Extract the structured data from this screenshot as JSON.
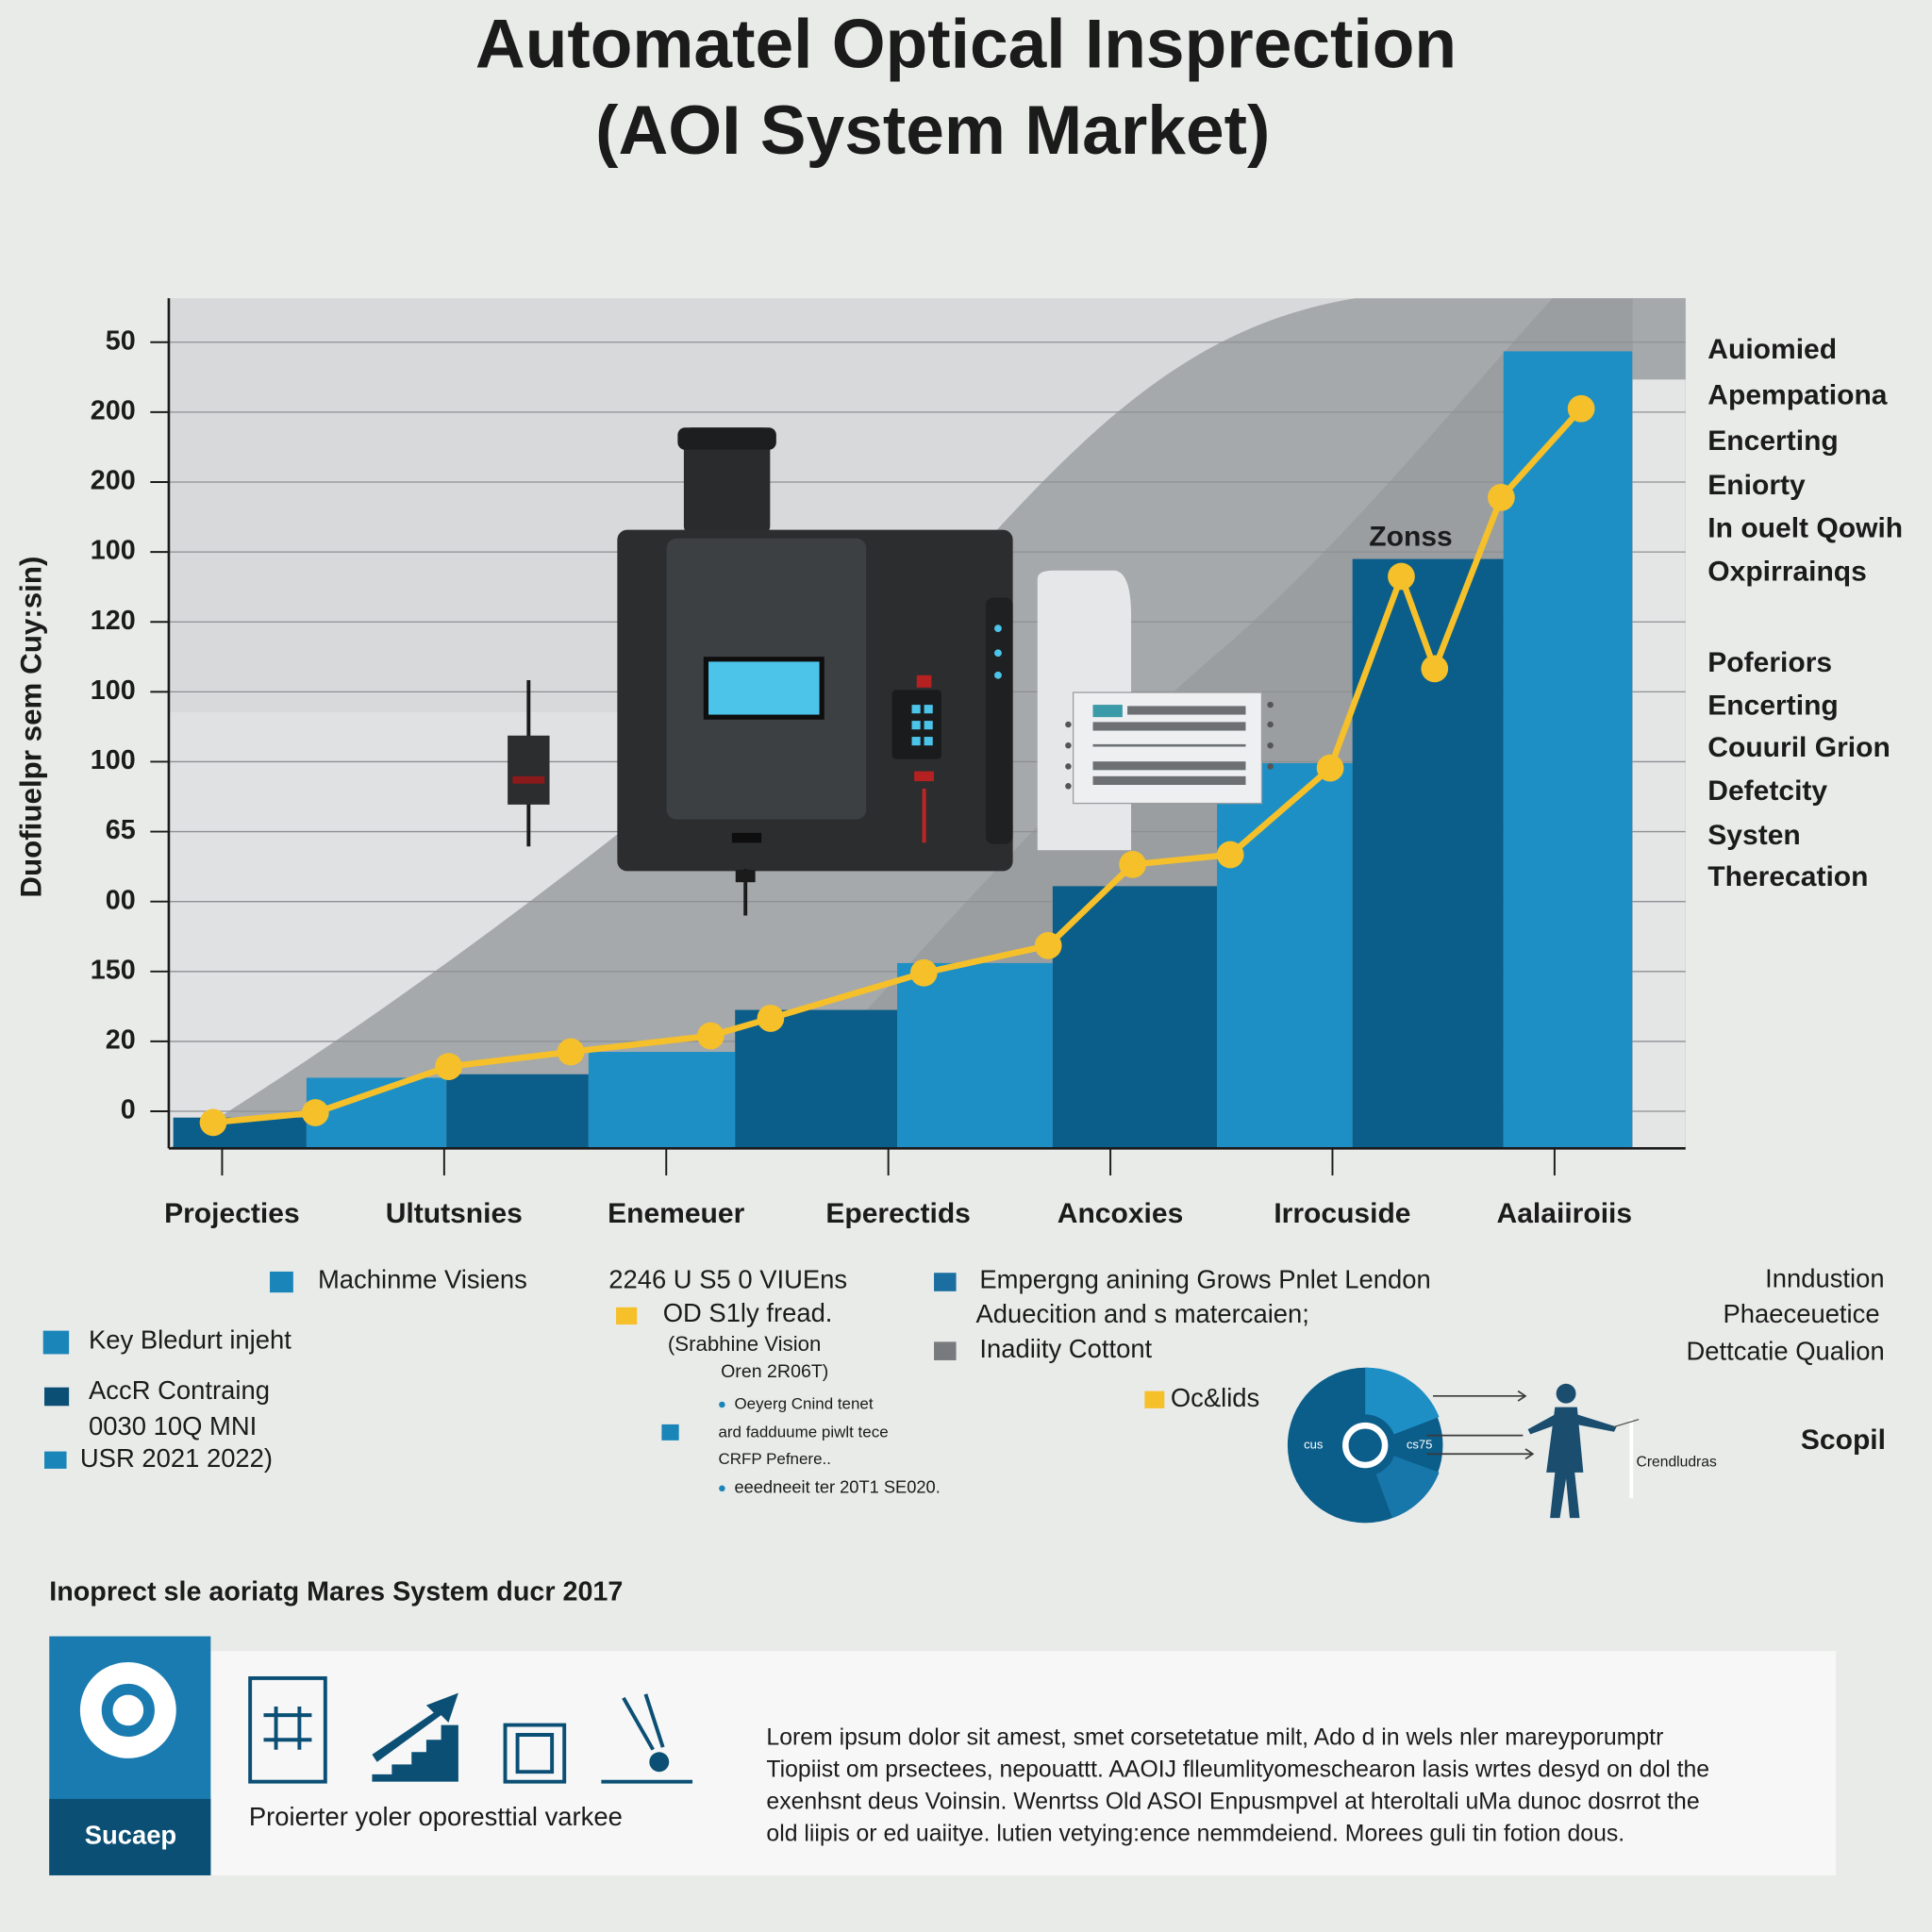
{
  "title": [
    "Automatel Optical Insprection",
    "(AOI System Market)"
  ],
  "chart_data": {
    "type": "line",
    "y_label": "Duofiuelpr sem Cuy:sin)",
    "annotation": "Zonss",
    "xlim": [
      -0.24,
      6.59
    ],
    "xticks": [
      {
        "value": 0,
        "label": "Projecties"
      },
      {
        "value": 1,
        "label": "Ultutsnies"
      },
      {
        "value": 2,
        "label": "Enemeuer"
      },
      {
        "value": 3,
        "label": "Eperectids"
      },
      {
        "value": 4,
        "label": "Ancoxies"
      },
      {
        "value": 5,
        "label": "Irrocuside"
      },
      {
        "value": 6,
        "label": "Aalaiiroiis"
      }
    ],
    "ylim": [
      -0.53,
      11.63
    ],
    "yticks": [
      {
        "value": 0,
        "label": "0"
      },
      {
        "value": 1,
        "label": "20"
      },
      {
        "value": 2,
        "label": "150"
      },
      {
        "value": 3,
        "label": "00"
      },
      {
        "value": 4,
        "label": "65"
      },
      {
        "value": 5,
        "label": "100"
      },
      {
        "value": 6,
        "label": "100"
      },
      {
        "value": 7,
        "label": "120"
      },
      {
        "value": 8,
        "label": "100"
      },
      {
        "value": 9,
        "label": "200"
      },
      {
        "value": 10,
        "label": "200"
      },
      {
        "value": 11,
        "label": "50"
      }
    ],
    "grid": true,
    "color": "#f5c02a",
    "x": [
      -0.04,
      0.42,
      1.02,
      1.57,
      2.2,
      2.47,
      3.16,
      3.72,
      4.1,
      4.54,
      4.99,
      5.31,
      5.46,
      5.76,
      6.12
    ],
    "values": [
      -0.16,
      -0.02,
      0.64,
      0.85,
      1.08,
      1.33,
      1.98,
      2.37,
      3.53,
      3.67,
      4.91,
      7.65,
      6.33,
      8.78,
      10.05
    ],
    "bars": {
      "bins": [
        -0.22,
        0.38,
        1.01,
        1.65,
        2.31,
        3.04,
        3.74,
        4.48,
        5.09,
        5.77,
        6.35
      ],
      "values": [
        -0.09,
        0.48,
        0.53,
        0.85,
        1.45,
        2.12,
        3.22,
        4.98,
        7.9,
        10.87
      ],
      "colors": [
        "#0b5d8a",
        "#1e8fc4",
        "#0b5d8a",
        "#1e8fc4",
        "#0b5d8a",
        "#1e8fc4",
        "#0b5d8a",
        "#1e8fc4",
        "#0b5d8a",
        "#1e8fc4"
      ]
    }
  },
  "side_list": [
    "Auiomied",
    "Apempationa",
    "Encerting",
    "Eniorty",
    "In ouelt Qowih",
    "Oxpirrainqs",
    "Poferiors",
    "Encerting",
    "Couuril Grion",
    "Defetcity",
    "Systen",
    "Therecation"
  ],
  "legend": {
    "machine": {
      "text": "Machinme Visiens",
      "color": "#1a85b8"
    },
    "value_line": "2246 U S5 0 VIUEns",
    "trend": {
      "text": "OD S1ly fread.",
      "color": "#f5c02a"
    },
    "note": [
      "(Srabhine Vision",
      "Oren 2R06T)"
    ],
    "bullets": [
      "Oeyerg Cnind tenet",
      "ard fadduume piwlt tece",
      "CRFP Pefnere..",
      "eeedneeit ter 20T1 SE020."
    ],
    "bullet_color": "#1a85b8",
    "emerging": {
      "text": "Empergng anining Grows Pnlet Lendon",
      "color": "#1a6fa0"
    },
    "adoption": "Aduecition and s matercaien;",
    "inadiity": {
      "text": "Inadiity Cottont",
      "color": "#777b7e"
    },
    "key": {
      "text": "Key Bledurt injeht",
      "color": "#1a85b8"
    },
    "accr": {
      "text": "AccR Contraing",
      "color": "#0b4f75"
    },
    "accr_sub": "0030 10Q MNI",
    "usr": {
      "text": "USR 2021 2022)",
      "color": "#1a85b8"
    },
    "oclids": {
      "text": "Oc&lids",
      "color": "#f5c02a"
    },
    "donut_labels": [
      "cus",
      "cs75"
    ],
    "figure_label": "Crendludras",
    "right": [
      "Inndustion",
      "Phaeceuetice",
      "Dettcatie Qualion"
    ],
    "scope": "Scopil"
  },
  "bottom": {
    "heading": "Inoprect sle aoriatg Mares System ducr 2017",
    "badge": "Sucaep",
    "caption": "Proierter yoler oporesttial varkee",
    "paragraph": [
      "Lorem ipsum dolor sit amest, smet corsetetatue milt, Ado d in wels nler mareyporumptr",
      "Tiopiist om prsectees, nepouattt. AAOIJ flleumlityomeschearon lasis wrtes desyd on dol the",
      "exenhsnt deus Voinsin. Wenrtss Old ASOI Enpusmpvel at hteroltali uMa dunoc dosrrot the",
      "old liipis or ed uaiitye. lutien vetying:ence nemmdeiend. Morees guli tin fotion dous."
    ]
  }
}
